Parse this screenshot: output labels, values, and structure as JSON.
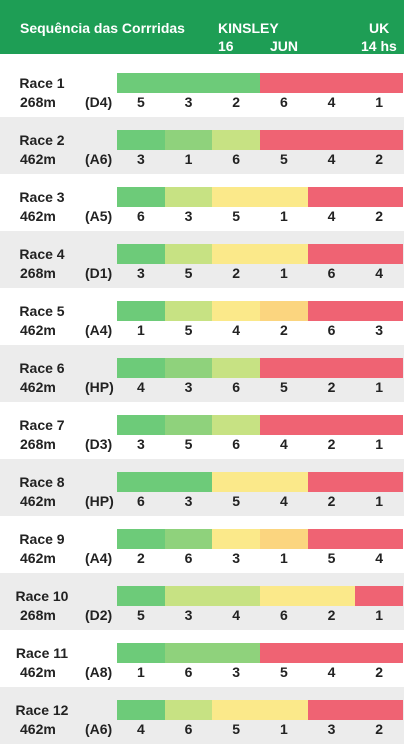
{
  "header": {
    "title": "Sequência das Corrridas",
    "track": "KINSLEY",
    "day": "16",
    "month": "JUN",
    "country": "UK",
    "time": "14 hs"
  },
  "colors": {
    "green": "#6dcb79",
    "lightgreen": "#8fd27c",
    "yellowgreen": "#c7e283",
    "yellow": "#fbe98a",
    "orange": "#fbd57f",
    "red": "#ef6373",
    "header_bg": "#1e9e55"
  },
  "races": [
    {
      "name": "Race 1",
      "distance": "268m",
      "grade": "(D4)",
      "traps": [
        "5",
        "3",
        "2",
        "6",
        "4",
        "1"
      ],
      "colors": [
        "green",
        "green",
        "green",
        "red",
        "red",
        "red"
      ]
    },
    {
      "name": "Race 2",
      "distance": "462m",
      "grade": "(A6)",
      "traps": [
        "3",
        "1",
        "6",
        "5",
        "4",
        "2"
      ],
      "colors": [
        "green",
        "lightgreen",
        "yellowgreen",
        "red",
        "red",
        "red"
      ]
    },
    {
      "name": "Race 3",
      "distance": "462m",
      "grade": "(A5)",
      "traps": [
        "6",
        "3",
        "5",
        "1",
        "4",
        "2"
      ],
      "colors": [
        "green",
        "yellowgreen",
        "yellow",
        "yellow",
        "red",
        "red"
      ]
    },
    {
      "name": "Race 4",
      "distance": "268m",
      "grade": "(D1)",
      "traps": [
        "3",
        "5",
        "2",
        "1",
        "6",
        "4"
      ],
      "colors": [
        "green",
        "yellowgreen",
        "yellow",
        "yellow",
        "red",
        "red"
      ]
    },
    {
      "name": "Race 5",
      "distance": "462m",
      "grade": "(A4)",
      "traps": [
        "1",
        "5",
        "4",
        "2",
        "6",
        "3"
      ],
      "colors": [
        "green",
        "yellowgreen",
        "yellow",
        "orange",
        "red",
        "red"
      ]
    },
    {
      "name": "Race 6",
      "distance": "462m",
      "grade": "(HP)",
      "traps": [
        "4",
        "3",
        "6",
        "5",
        "2",
        "1"
      ],
      "colors": [
        "green",
        "lightgreen",
        "yellowgreen",
        "red",
        "red",
        "red"
      ]
    },
    {
      "name": "Race 7",
      "distance": "268m",
      "grade": "(D3)",
      "traps": [
        "3",
        "5",
        "6",
        "4",
        "2",
        "1"
      ],
      "colors": [
        "green",
        "lightgreen",
        "yellowgreen",
        "red",
        "red",
        "red"
      ]
    },
    {
      "name": "Race 8",
      "distance": "462m",
      "grade": "(HP)",
      "traps": [
        "6",
        "3",
        "5",
        "4",
        "2",
        "1"
      ],
      "colors": [
        "green",
        "green",
        "yellow",
        "yellow",
        "red",
        "red"
      ]
    },
    {
      "name": "Race 9",
      "distance": "462m",
      "grade": "(A4)",
      "traps": [
        "2",
        "6",
        "3",
        "1",
        "5",
        "4"
      ],
      "colors": [
        "green",
        "lightgreen",
        "yellow",
        "orange",
        "red",
        "red"
      ]
    },
    {
      "name": "Race 10",
      "distance": "268m",
      "grade": "(D2)",
      "traps": [
        "5",
        "3",
        "4",
        "6",
        "2",
        "1"
      ],
      "colors": [
        "green",
        "yellowgreen",
        "yellowgreen",
        "yellow",
        "yellow",
        "red"
      ]
    },
    {
      "name": "Race 11",
      "distance": "462m",
      "grade": "(A8)",
      "traps": [
        "1",
        "6",
        "3",
        "5",
        "4",
        "2"
      ],
      "colors": [
        "green",
        "lightgreen",
        "lightgreen",
        "red",
        "red",
        "red"
      ]
    },
    {
      "name": "Race 12",
      "distance": "462m",
      "grade": "(A6)",
      "traps": [
        "4",
        "6",
        "5",
        "1",
        "3",
        "2"
      ],
      "colors": [
        "green",
        "yellowgreen",
        "yellow",
        "yellow",
        "red",
        "red"
      ]
    }
  ]
}
